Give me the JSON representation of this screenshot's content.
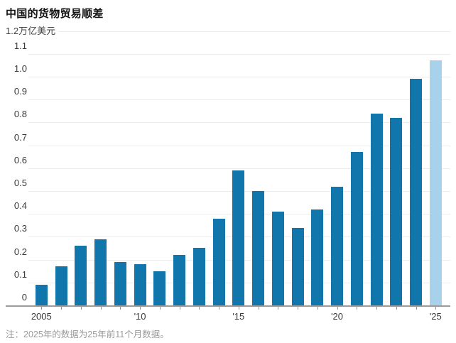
{
  "header": {
    "title": "中国的货物贸易顺差"
  },
  "y_axis": {
    "unit_label": "1.2万亿美元",
    "ticks": [
      "1.2",
      "1.1",
      "1.0",
      "0.9",
      "0.8",
      "0.7",
      "0.6",
      "0.5",
      "0.4",
      "0.3",
      "0.2",
      "0.1",
      "0"
    ],
    "max": 1.2,
    "min": 0
  },
  "x_axis": {
    "labels": [
      {
        "index": 0,
        "text": "2005"
      },
      {
        "index": 5,
        "text": "'10"
      },
      {
        "index": 10,
        "text": "'15"
      },
      {
        "index": 15,
        "text": "'20"
      },
      {
        "index": 20,
        "text": "'25"
      }
    ]
  },
  "colors": {
    "bar": "#1076ac",
    "bar_highlight": "#a8d1ec",
    "gridline": "#ececec",
    "axis": "#9b9b9b",
    "text": "#3a3a3a",
    "muted": "#9a9a9a"
  },
  "chart_data": {
    "type": "bar",
    "title": "中国的货物贸易顺差",
    "ylabel": "万亿美元",
    "xlabel": "",
    "ylim": [
      0,
      1.2
    ],
    "grid": true,
    "categories": [
      2005,
      2006,
      2007,
      2008,
      2009,
      2010,
      2011,
      2012,
      2013,
      2014,
      2015,
      2016,
      2017,
      2018,
      2019,
      2020,
      2021,
      2022,
      2023,
      2024,
      2025
    ],
    "values": [
      0.09,
      0.17,
      0.26,
      0.29,
      0.19,
      0.18,
      0.15,
      0.22,
      0.25,
      0.38,
      0.59,
      0.5,
      0.41,
      0.34,
      0.42,
      0.52,
      0.67,
      0.84,
      0.82,
      0.99,
      1.07
    ],
    "highlight_last_bar": true,
    "x_tick_labels_visible": [
      "2005",
      "'10",
      "'15",
      "'20",
      "'25"
    ]
  },
  "footer": {
    "note": "注：2025年的数据为25年前11个月数据。"
  }
}
